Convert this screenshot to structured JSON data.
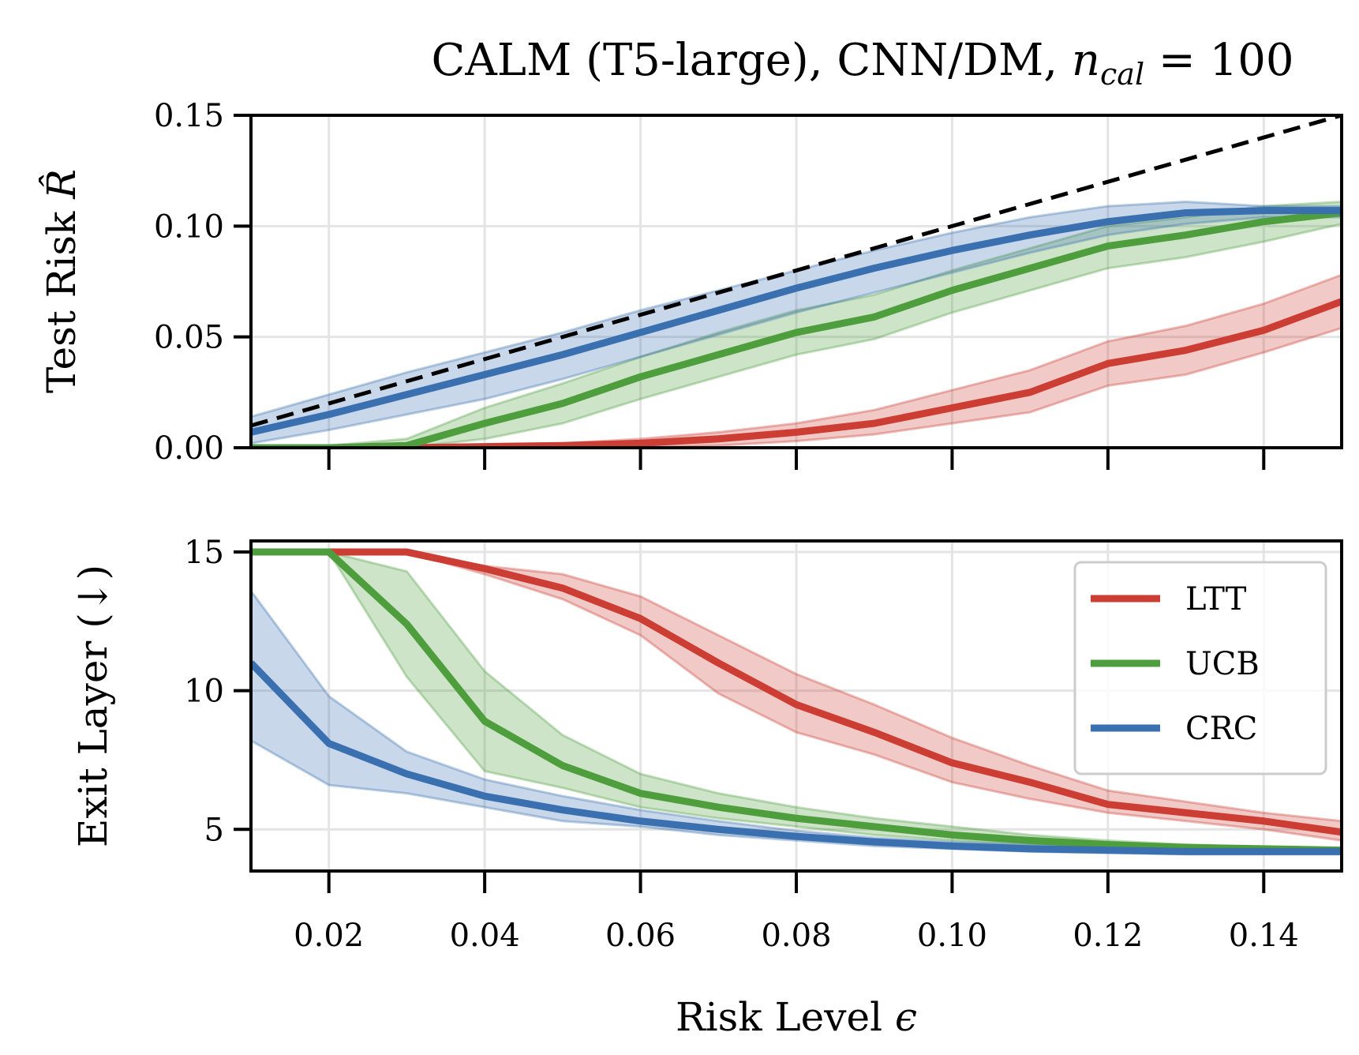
{
  "figure": {
    "title": "CALM (T5-large), CNN/DM, ",
    "title_math_n": "n",
    "title_math_sub": "cal",
    "title_math_rest": " = 100"
  },
  "chart_data": [
    {
      "type": "line",
      "panel": "top",
      "ylabel": "Test Risk",
      "ylabel_symbol": "R̂",
      "xlim": [
        0.01,
        0.15
      ],
      "ylim": [
        0.0,
        0.15
      ],
      "yticks": [
        "0.00",
        "0.05",
        "0.10",
        "0.15"
      ],
      "grid": true,
      "x": [
        0.01,
        0.02,
        0.03,
        0.04,
        0.05,
        0.06,
        0.07,
        0.08,
        0.09,
        0.1,
        0.11,
        0.12,
        0.13,
        0.14,
        0.15
      ],
      "reference_line": {
        "style": "dashed",
        "color": "#000000",
        "from": [
          0.01,
          0.01
        ],
        "to": [
          0.15,
          0.15
        ]
      },
      "series": [
        {
          "name": "LTT",
          "color": "#cc3d33",
          "values": [
            0.0,
            0.0,
            0.0,
            0.0005,
            0.001,
            0.002,
            0.004,
            0.007,
            0.011,
            0.018,
            0.025,
            0.038,
            0.044,
            0.053,
            0.066
          ],
          "lower": [
            0.0,
            0.0,
            0.0,
            0.0,
            0.0,
            0.0,
            0.001,
            0.003,
            0.006,
            0.011,
            0.016,
            0.028,
            0.033,
            0.043,
            0.054
          ],
          "upper": [
            0.0,
            0.0,
            0.001,
            0.001,
            0.002,
            0.004,
            0.007,
            0.011,
            0.017,
            0.026,
            0.035,
            0.048,
            0.055,
            0.065,
            0.078
          ]
        },
        {
          "name": "UCB",
          "color": "#4e9e3e",
          "values": [
            0.0,
            0.0,
            0.001,
            0.011,
            0.02,
            0.032,
            0.042,
            0.052,
            0.059,
            0.071,
            0.081,
            0.091,
            0.096,
            0.102,
            0.106
          ],
          "lower": [
            0.0,
            0.0,
            0.0,
            0.004,
            0.011,
            0.022,
            0.032,
            0.042,
            0.049,
            0.061,
            0.071,
            0.081,
            0.086,
            0.093,
            0.101
          ],
          "upper": [
            0.0,
            0.001,
            0.004,
            0.018,
            0.029,
            0.041,
            0.052,
            0.062,
            0.069,
            0.08,
            0.09,
            0.1,
            0.104,
            0.109,
            0.111
          ]
        },
        {
          "name": "CRC",
          "color": "#3a6fb0",
          "values": [
            0.007,
            0.015,
            0.024,
            0.033,
            0.042,
            0.052,
            0.062,
            0.072,
            0.081,
            0.089,
            0.096,
            0.102,
            0.106,
            0.107,
            0.107
          ],
          "lower": [
            0.002,
            0.008,
            0.015,
            0.022,
            0.031,
            0.041,
            0.051,
            0.061,
            0.07,
            0.079,
            0.088,
            0.096,
            0.101,
            0.104,
            0.104
          ],
          "upper": [
            0.014,
            0.024,
            0.034,
            0.043,
            0.052,
            0.062,
            0.071,
            0.08,
            0.089,
            0.097,
            0.104,
            0.109,
            0.111,
            0.109,
            0.109
          ]
        }
      ]
    },
    {
      "type": "line",
      "panel": "bottom",
      "ylabel": "Exit Layer (↓)",
      "xlabel": "Risk Level",
      "xlabel_symbol": "ϵ",
      "xlim": [
        0.01,
        0.15
      ],
      "ylim": [
        3.5,
        15.4
      ],
      "xticks": [
        "0.02",
        "0.04",
        "0.06",
        "0.08",
        "0.10",
        "0.12",
        "0.14"
      ],
      "yticks": [
        "5",
        "10",
        "15"
      ],
      "grid": true,
      "legend": {
        "position": "upper right",
        "entries": [
          "LTT",
          "UCB",
          "CRC"
        ]
      },
      "x": [
        0.01,
        0.02,
        0.03,
        0.04,
        0.05,
        0.06,
        0.07,
        0.08,
        0.09,
        0.1,
        0.11,
        0.12,
        0.13,
        0.14,
        0.15
      ],
      "series": [
        {
          "name": "LTT",
          "color": "#cc3d33",
          "values": [
            15.0,
            15.0,
            15.0,
            14.4,
            13.7,
            12.6,
            11.0,
            9.5,
            8.5,
            7.4,
            6.7,
            5.9,
            5.6,
            5.3,
            4.9
          ],
          "lower": [
            15.0,
            15.0,
            15.0,
            14.2,
            13.3,
            12.0,
            9.9,
            8.5,
            7.7,
            6.7,
            6.1,
            5.6,
            5.3,
            5.0,
            4.6
          ],
          "upper": [
            15.0,
            15.0,
            15.0,
            14.5,
            14.2,
            13.4,
            12.0,
            10.6,
            9.5,
            8.3,
            7.3,
            6.4,
            6.0,
            5.6,
            5.3
          ]
        },
        {
          "name": "UCB",
          "color": "#4e9e3e",
          "values": [
            15.0,
            15.0,
            12.4,
            8.9,
            7.3,
            6.3,
            5.8,
            5.4,
            5.1,
            4.8,
            4.6,
            4.45,
            4.35,
            4.3,
            4.25
          ],
          "lower": [
            15.0,
            15.0,
            10.5,
            7.1,
            6.5,
            5.8,
            5.4,
            5.1,
            4.8,
            4.6,
            4.45,
            4.35,
            4.3,
            4.25,
            4.2
          ],
          "upper": [
            15.0,
            15.0,
            14.3,
            10.7,
            8.4,
            7.0,
            6.3,
            5.8,
            5.4,
            5.1,
            4.8,
            4.6,
            4.45,
            4.35,
            4.3
          ]
        },
        {
          "name": "CRC",
          "color": "#3a6fb0",
          "values": [
            11.0,
            8.1,
            7.0,
            6.2,
            5.7,
            5.3,
            5.0,
            4.75,
            4.55,
            4.4,
            4.3,
            4.25,
            4.2,
            4.2,
            4.2
          ],
          "lower": [
            8.2,
            6.6,
            6.3,
            5.8,
            5.3,
            5.1,
            4.8,
            4.6,
            4.4,
            4.3,
            4.2,
            4.15,
            4.1,
            4.1,
            4.1
          ],
          "upper": [
            13.6,
            9.8,
            7.8,
            6.8,
            6.2,
            5.7,
            5.3,
            4.95,
            4.7,
            4.55,
            4.45,
            4.35,
            4.3,
            4.3,
            4.3
          ]
        }
      ]
    }
  ]
}
